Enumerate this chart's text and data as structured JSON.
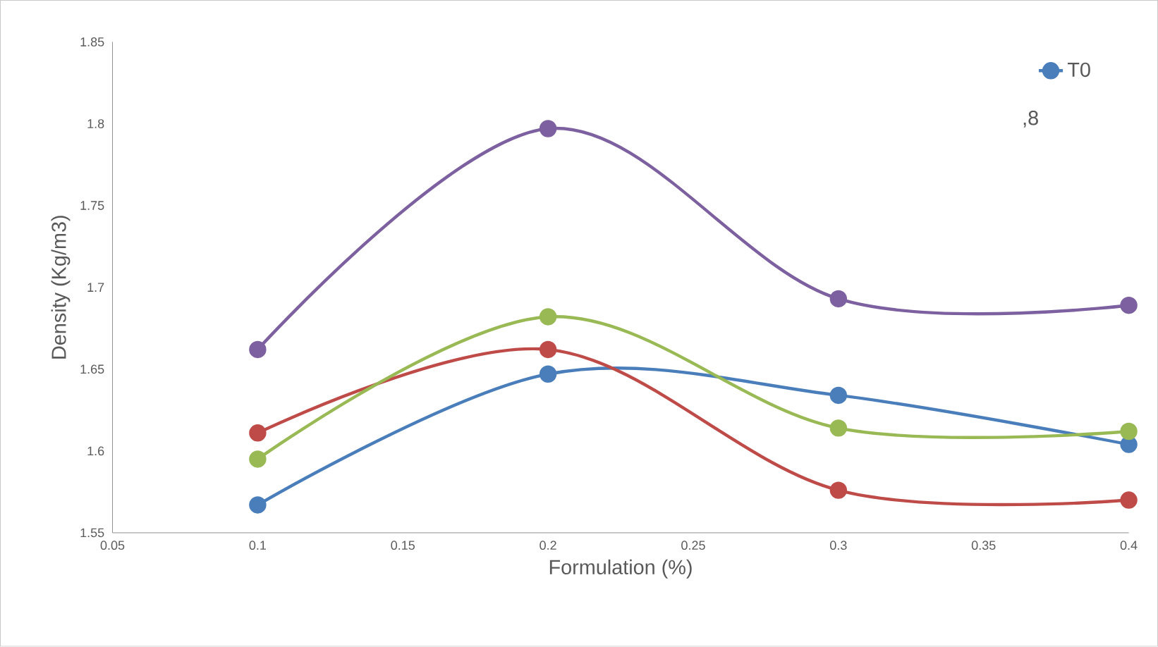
{
  "chart_data": {
    "type": "line",
    "xlabel": "Formulation (%)",
    "ylabel": "Density (Kg/m3)",
    "x": [
      0.1,
      0.2,
      0.3,
      0.4
    ],
    "series": [
      {
        "name": "T0",
        "color": "#4a7ebb",
        "values": [
          1.567,
          1.647,
          1.634,
          1.604
        ]
      },
      {
        "color": "#be4b48",
        "values": [
          1.611,
          1.662,
          1.576,
          1.57
        ]
      },
      {
        "color": "#98b954",
        "values": [
          1.595,
          1.682,
          1.614,
          1.612
        ]
      },
      {
        "color": "#7d60a0",
        "values": [
          1.662,
          1.797,
          1.693,
          1.689
        ]
      }
    ],
    "xlim": [
      0.05,
      0.4
    ],
    "ylim": [
      1.55,
      1.85
    ],
    "xticks": [
      0.05,
      0.1,
      0.15,
      0.2,
      0.25,
      0.3,
      0.35,
      0.4
    ],
    "yticks": [
      1.55,
      1.6,
      1.65,
      1.7,
      1.75,
      1.8,
      1.85
    ],
    "grid": false,
    "legend": "top right",
    "marker": "circle",
    "line_style": "solid",
    "annotations": [
      ",8"
    ]
  }
}
